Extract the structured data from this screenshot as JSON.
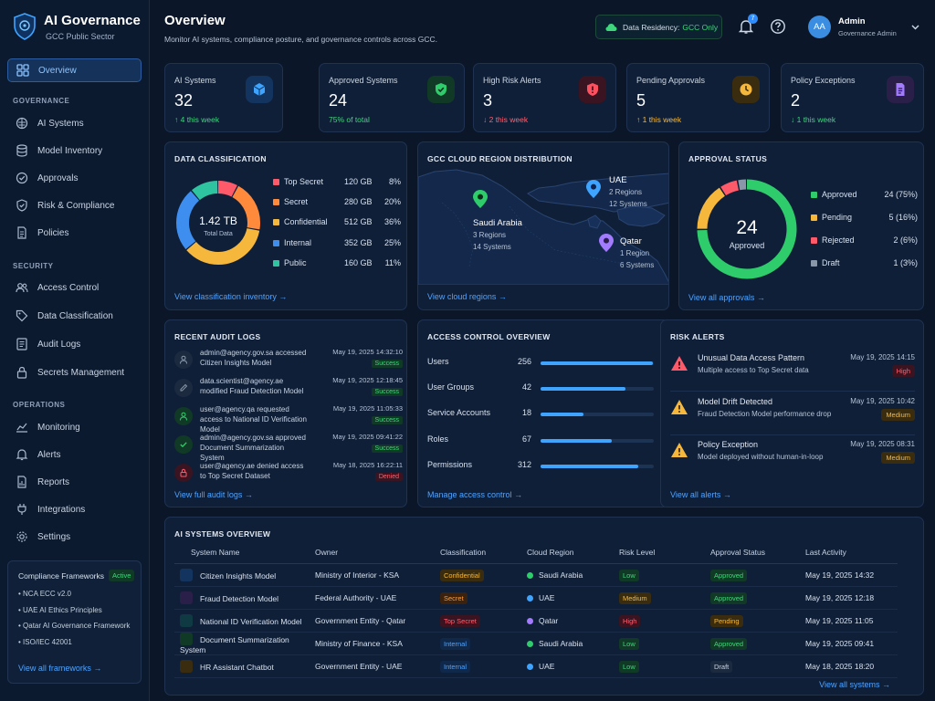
{
  "app": {
    "name": "AI Governance",
    "subtitle": "GCC Public Sector"
  },
  "sidebar": {
    "active": "Overview",
    "sections": [
      {
        "label": "GOVERNANCE",
        "items": [
          "AI Systems",
          "Model Inventory",
          "Approvals",
          "Risk & Compliance",
          "Policies"
        ]
      },
      {
        "label": "SECURITY",
        "items": [
          "Access Control",
          "Data Classification",
          "Audit Logs",
          "Secrets Management"
        ]
      },
      {
        "label": "OPERATIONS",
        "items": [
          "Monitoring",
          "Alerts",
          "Reports",
          "Integrations",
          "Settings"
        ]
      }
    ],
    "frameworks": {
      "title": "Compliance Frameworks",
      "badge": "Active",
      "items": [
        "NCA ECC v2.0",
        "UAE AI Ethics Principles",
        "Qatar AI Governance Framework",
        "ISO/IEC 42001"
      ],
      "link": "View all frameworks"
    }
  },
  "header": {
    "title": "Overview",
    "subtitle": "Monitor AI systems, compliance posture, and governance controls across GCC.",
    "residency_label": "Data Residency:",
    "residency_value": "GCC Only",
    "notification_count": "7",
    "user_initials": "AA",
    "user_name": "Admin",
    "user_role": "Governance Admin"
  },
  "stats": [
    {
      "label": "AI Systems",
      "value": "32",
      "change": "↑ 4 this week",
      "trend": "up",
      "icon": "cube-icon",
      "color": "#3ea4ff"
    },
    {
      "label": "Approved Systems",
      "value": "24",
      "change": "75% of total",
      "trend": "up",
      "icon": "shield-check-icon",
      "color": "#2ecc6b"
    },
    {
      "label": "High Risk Alerts",
      "value": "3",
      "change": "↓ 2 this week",
      "trend": "down",
      "icon": "shield-alert-icon",
      "color": "#ff5060"
    },
    {
      "label": "Pending Approvals",
      "value": "5",
      "change": "↑ 1 this week",
      "trend": "amber",
      "icon": "clock-icon",
      "color": "#f6b83c"
    },
    {
      "label": "Policy Exceptions",
      "value": "2",
      "change": "↓ 1 this week",
      "trend": "up",
      "icon": "document-icon",
      "color": "#a27bff"
    }
  ],
  "classification": {
    "title": "DATA CLASSIFICATION",
    "total": "1.42 TB",
    "total_label": "Total Data",
    "rows": [
      {
        "name": "Top Secret",
        "size": "120 GB",
        "pct": "8%",
        "value": 8,
        "color": "#ff5a6a"
      },
      {
        "name": "Secret",
        "size": "280 GB",
        "pct": "20%",
        "value": 20,
        "color": "#ff8a3c"
      },
      {
        "name": "Confidential",
        "size": "512 GB",
        "pct": "36%",
        "value": 36,
        "color": "#f6b83c"
      },
      {
        "name": "Internal",
        "size": "352 GB",
        "pct": "25%",
        "value": 25,
        "color": "#3e8ef0"
      },
      {
        "name": "Public",
        "size": "160 GB",
        "pct": "11%",
        "value": 11,
        "color": "#2ec4a0"
      }
    ],
    "link": "View classification inventory"
  },
  "regions": {
    "title": "GCC CLOUD REGION DISTRIBUTION",
    "items": [
      {
        "name": "UAE",
        "regions": "2 Regions",
        "systems": "12 Systems",
        "color": "#3ea4ff"
      },
      {
        "name": "Saudi Arabia",
        "regions": "3 Regions",
        "systems": "14 Systems",
        "color": "#2ecc6b"
      },
      {
        "name": "Qatar",
        "regions": "1 Region",
        "systems": "6 Systems",
        "color": "#a27bff"
      }
    ],
    "link": "View cloud regions"
  },
  "approval": {
    "title": "APPROVAL STATUS",
    "total": "24",
    "total_label": "Approved",
    "rows": [
      {
        "name": "Approved",
        "count": "24 (75%)",
        "value": 75,
        "color": "#2ecc6b"
      },
      {
        "name": "Pending",
        "count": "5 (16%)",
        "value": 16,
        "color": "#f6b83c"
      },
      {
        "name": "Rejected",
        "count": "2 (6%)",
        "value": 6,
        "color": "#ff5a6a"
      },
      {
        "name": "Draft",
        "count": "1 (3%)",
        "value": 3,
        "color": "#8a97a8"
      }
    ],
    "link": "View all approvals"
  },
  "audit": {
    "title": "RECENT AUDIT LOGS",
    "rows": [
      {
        "text": "admin@agency.gov.sa accessed Citizen Insights Model",
        "time": "May 19, 2025 14:32:10",
        "status": "Success",
        "icon": "user-icon",
        "color": "#8a97a8"
      },
      {
        "text": "data.scientist@agency.ae modified Fraud Detection Model",
        "time": "May 19, 2025 12:18:45",
        "status": "Success",
        "icon": "edit-icon",
        "color": "#8a97a8"
      },
      {
        "text": "user@agency.qa requested access to National ID Verification Model",
        "time": "May 19, 2025 11:05:33",
        "status": "Success",
        "icon": "user-icon",
        "color": "#2ecc6b"
      },
      {
        "text": "admin@agency.gov.sa approved Document Summarization System",
        "time": "May 19, 2025 09:41:22",
        "status": "Success",
        "icon": "check-icon",
        "color": "#2ecc6b"
      },
      {
        "text": "user@agency.ae denied access to Top Secret Dataset",
        "time": "May 18, 2025 16:22:11",
        "status": "Denied",
        "icon": "lock-icon",
        "color": "#ff5a6a"
      }
    ],
    "link": "View full audit logs"
  },
  "access": {
    "title": "ACCESS CONTROL OVERVIEW",
    "rows": [
      {
        "name": "Users",
        "value": "256",
        "fill": 0.99
      },
      {
        "name": "User Groups",
        "value": "42",
        "fill": 0.75
      },
      {
        "name": "Service Accounts",
        "value": "18",
        "fill": 0.38
      },
      {
        "name": "Roles",
        "value": "67",
        "fill": 0.63
      },
      {
        "name": "Permissions",
        "value": "312",
        "fill": 0.86
      }
    ],
    "link": "Manage access control"
  },
  "risk": {
    "title": "RISK ALERTS",
    "rows": [
      {
        "title": "Unusual Data Access Pattern",
        "desc": "Multiple access to Top Secret data",
        "time": "May 19, 2025 14:15",
        "level": "High",
        "color": "#ff5a6a"
      },
      {
        "title": "Model Drift Detected",
        "desc": "Fraud Detection Model performance drop",
        "time": "May 19, 2025 10:42",
        "level": "Medium",
        "color": "#f6b83c"
      },
      {
        "title": "Policy Exception",
        "desc": "Model deployed without human-in-loop",
        "time": "May 19, 2025 08:31",
        "level": "Medium",
        "color": "#f6b83c"
      }
    ],
    "link": "View all alerts"
  },
  "systems": {
    "title": "AI SYSTEMS OVERVIEW",
    "columns": [
      "System Name",
      "Owner",
      "Classification",
      "Cloud Region",
      "Risk Level",
      "Approval Status",
      "Last Activity"
    ],
    "rows": [
      {
        "name": "Citizen Insights Model",
        "owner": "Ministry of Interior - KSA",
        "cls": "Confidential",
        "region": "Saudi Arabia",
        "risk": "Low",
        "status": "Approved",
        "last": "May 19, 2025 14:32",
        "icon_color": "#3e8ef0",
        "region_color": "#2ecc6b"
      },
      {
        "name": "Fraud Detection Model",
        "owner": "Federal Authority - UAE",
        "cls": "Secret",
        "region": "UAE",
        "risk": "Medium",
        "status": "Approved",
        "last": "May 19, 2025 12:18",
        "icon_color": "#a27bff",
        "region_color": "#3ea4ff"
      },
      {
        "name": "National ID Verification Model",
        "owner": "Government Entity - Qatar",
        "cls": "Top Secret",
        "region": "Qatar",
        "risk": "High",
        "status": "Pending",
        "last": "May 19, 2025 11:05",
        "icon_color": "#2ec4d0",
        "region_color": "#a27bff"
      },
      {
        "name": "Document Summarization System",
        "owner": "Ministry of Finance - KSA",
        "cls": "Internal",
        "region": "Saudi Arabia",
        "risk": "Low",
        "status": "Approved",
        "last": "May 19, 2025 09:41",
        "icon_color": "#2ecc6b",
        "region_color": "#2ecc6b"
      },
      {
        "name": "HR Assistant Chatbot",
        "owner": "Government Entity - UAE",
        "cls": "Internal",
        "region": "UAE",
        "risk": "Low",
        "status": "Draft",
        "last": "May 18, 2025 18:20",
        "icon_color": "#f6b83c",
        "region_color": "#3ea4ff"
      }
    ],
    "link": "View all systems"
  }
}
